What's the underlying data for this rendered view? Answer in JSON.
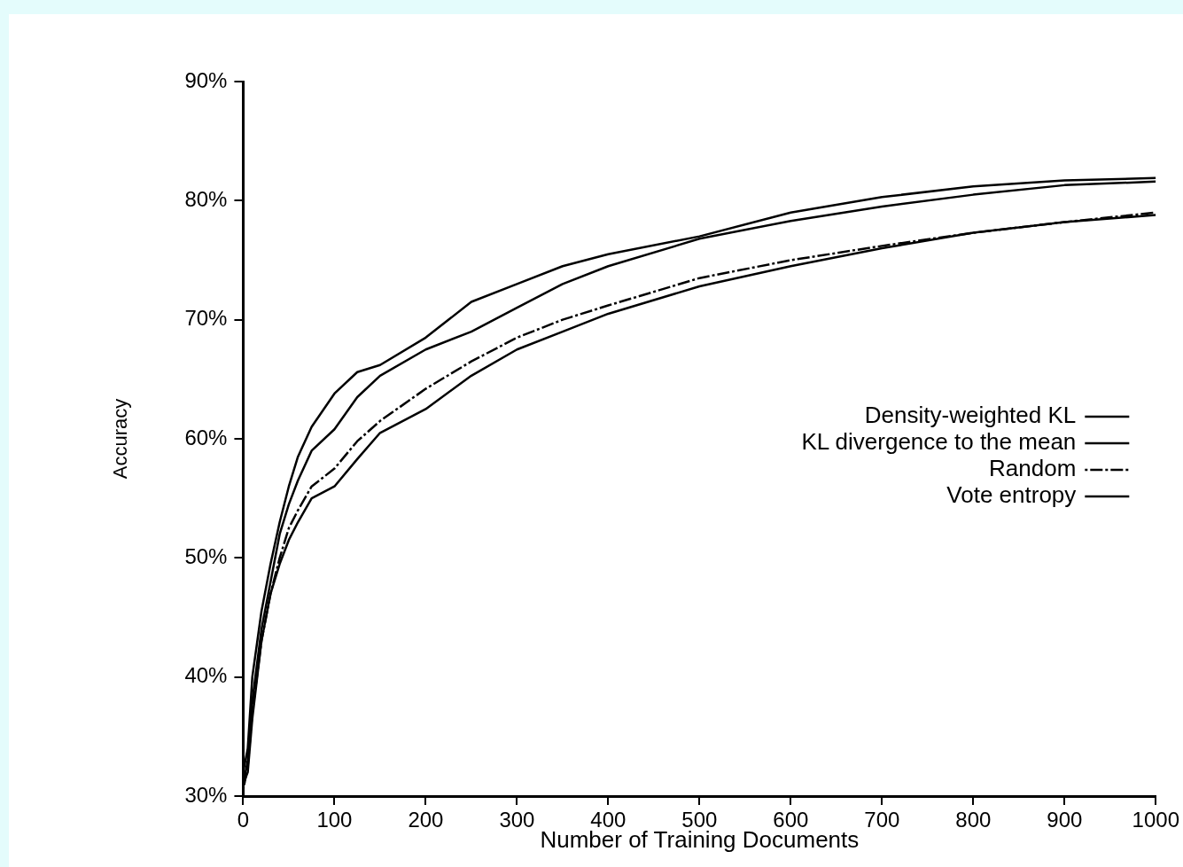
{
  "chart_data": {
    "type": "line",
    "xlabel": "Number of Training Documents",
    "ylabel": "Accuracy",
    "x": [
      0,
      5,
      10,
      20,
      30,
      40,
      50,
      60,
      75,
      100,
      125,
      150,
      200,
      250,
      300,
      350,
      400,
      500,
      600,
      700,
      800,
      900,
      1000
    ],
    "xlim": [
      0,
      1000
    ],
    "xticks": [
      0,
      100,
      200,
      300,
      400,
      500,
      600,
      700,
      800,
      900,
      1000
    ],
    "ylim": [
      30,
      90
    ],
    "yticks": [
      {
        "value": 30,
        "label": "30%"
      },
      {
        "value": 40,
        "label": "40%"
      },
      {
        "value": 50,
        "label": "50%"
      },
      {
        "value": 60,
        "label": "60%"
      },
      {
        "value": 70,
        "label": "70%"
      },
      {
        "value": 80,
        "label": "80%"
      },
      {
        "value": 90,
        "label": "90%"
      }
    ],
    "grid": false,
    "legend": "right",
    "marker": "none",
    "series": [
      {
        "name": "Density-weighted KL",
        "color": "#000000",
        "line_style": "solid",
        "values": [
          32,
          34,
          40,
          45.5,
          49.5,
          53,
          56,
          58.5,
          61,
          63.8,
          65.6,
          66.2,
          68.5,
          71.5,
          73,
          74.5,
          75.5,
          77,
          79,
          80.3,
          81.2,
          81.7,
          81.9
        ]
      },
      {
        "name": "KL divergence to the mean",
        "color": "#000000",
        "line_style": "solid",
        "values": [
          31,
          33,
          38,
          44,
          48,
          52,
          54.5,
          56.5,
          59,
          60.8,
          63.5,
          65.3,
          67.5,
          69,
          71,
          73,
          74.5,
          76.8,
          78.3,
          79.5,
          80.5,
          81.3,
          81.6
        ]
      },
      {
        "name": "Random",
        "color": "#000000",
        "line_style": "dashdot",
        "values": [
          30.5,
          32.5,
          37,
          43,
          47,
          50,
          52.5,
          54,
          56,
          57.5,
          59.8,
          61.5,
          64.2,
          66.5,
          68.5,
          70,
          71.2,
          73.5,
          75,
          76.2,
          77.3,
          78.2,
          79
        ]
      },
      {
        "name": "Vote entropy",
        "color": "#000000",
        "line_style": "solid",
        "values": [
          31,
          32,
          36.5,
          43,
          47,
          49.5,
          51.5,
          53,
          55,
          56,
          58.3,
          60.5,
          62.5,
          65.3,
          67.5,
          69,
          70.5,
          72.8,
          74.5,
          76,
          77.3,
          78.2,
          78.8
        ]
      }
    ]
  }
}
